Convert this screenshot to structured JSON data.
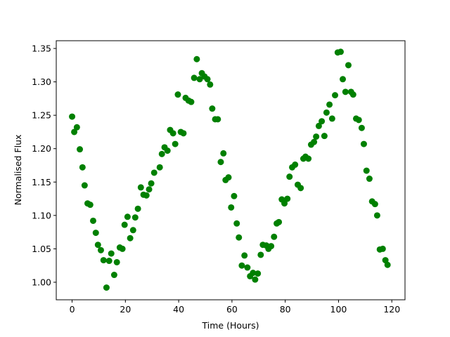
{
  "chart_data": {
    "type": "scatter",
    "xlabel": "Time (Hours)",
    "ylabel": "Normalised Flux",
    "color": "#008000",
    "x": [
      0,
      0.8,
      1.8,
      2.9,
      3.9,
      4.7,
      5.8,
      6.8,
      7.9,
      8.9,
      9.7,
      10.8,
      11.8,
      12.9,
      13.9,
      14.7,
      15.8,
      16.8,
      17.9,
      18.9,
      19.7,
      20.8,
      21.8,
      22.9,
      23.7,
      24.7,
      25.8,
      26.8,
      27.9,
      28.9,
      29.7,
      30.8,
      32.9,
      33.7,
      34.7,
      35.8,
      36.8,
      37.9,
      38.7,
      39.7,
      40.8,
      41.8,
      42.6,
      43.7,
      44.7,
      45.8,
      46.8,
      47.9,
      48.7,
      49.7,
      50.8,
      51.8,
      52.6,
      53.7,
      54.7,
      55.8,
      56.8,
      57.6,
      58.7,
      59.7,
      60.8,
      61.8,
      62.6,
      63.7,
      64.7,
      65.8,
      66.8,
      67.9,
      68.7,
      69.7,
      70.8,
      71.6,
      72.9,
      73.7,
      74.7,
      75.8,
      76.8,
      77.6,
      78.7,
      79.7,
      80.8,
      81.6,
      82.6,
      83.7,
      84.7,
      85.8,
      86.8,
      87.6,
      88.7,
      89.7,
      90.8,
      91.6,
      92.6,
      93.7,
      94.7,
      95.5,
      96.6,
      97.6,
      98.7,
      99.7,
      100.8,
      101.6,
      102.6,
      103.7,
      104.7,
      105.5,
      106.6,
      107.6,
      108.7,
      109.5,
      110.5,
      111.6,
      112.6,
      113.7,
      114.5,
      115.5,
      116.6,
      117.6,
      118.4
    ],
    "values": [
      1.248,
      1.225,
      1.232,
      1.199,
      1.172,
      1.145,
      1.118,
      1.116,
      1.092,
      1.074,
      1.056,
      1.048,
      1.033,
      0.992,
      1.032,
      1.043,
      1.011,
      1.03,
      1.052,
      1.05,
      1.086,
      1.098,
      1.066,
      1.078,
      1.097,
      1.11,
      1.142,
      1.131,
      1.13,
      1.139,
      1.148,
      1.164,
      1.172,
      1.192,
      1.202,
      1.197,
      1.228,
      1.223,
      1.207,
      1.281,
      1.225,
      1.223,
      1.276,
      1.272,
      1.27,
      1.306,
      1.334,
      1.304,
      1.313,
      1.308,
      1.304,
      1.296,
      1.26,
      1.244,
      1.244,
      1.18,
      1.193,
      1.153,
      1.157,
      1.112,
      1.129,
      1.088,
      1.067,
      1.025,
      1.04,
      1.022,
      1.009,
      1.014,
      1.004,
      1.013,
      1.041,
      1.056,
      1.055,
      1.05,
      1.054,
      1.068,
      1.088,
      1.09,
      1.124,
      1.118,
      1.125,
      1.158,
      1.172,
      1.176,
      1.146,
      1.141,
      1.185,
      1.188,
      1.185,
      1.206,
      1.21,
      1.218,
      1.234,
      1.241,
      1.219,
      1.254,
      1.266,
      1.245,
      1.28,
      1.344,
      1.345,
      1.304,
      1.285,
      1.325,
      1.285,
      1.281,
      1.245,
      1.243,
      1.231,
      1.207,
      1.167,
      1.155,
      1.121,
      1.117,
      1.1,
      1.049,
      1.05,
      1.033,
      1.026
    ],
    "xlim": [
      -5.95,
      124.95
    ],
    "xticks": [
      0,
      20,
      40,
      60,
      80,
      100,
      120
    ],
    "ylim": [
      0.9737,
      1.3616
    ],
    "yticks": [
      {
        "value": 1,
        "label": "1.00"
      },
      {
        "value": 1.05,
        "label": "1.05"
      },
      {
        "value": 1.1,
        "label": "1.10"
      },
      {
        "value": 1.15,
        "label": "1.15"
      },
      {
        "value": 1.2,
        "label": "1.20"
      },
      {
        "value": 1.25,
        "label": "1.25"
      },
      {
        "value": 1.3,
        "label": "1.30"
      },
      {
        "value": 1.35,
        "label": "1.35"
      }
    ],
    "grid": false
  }
}
